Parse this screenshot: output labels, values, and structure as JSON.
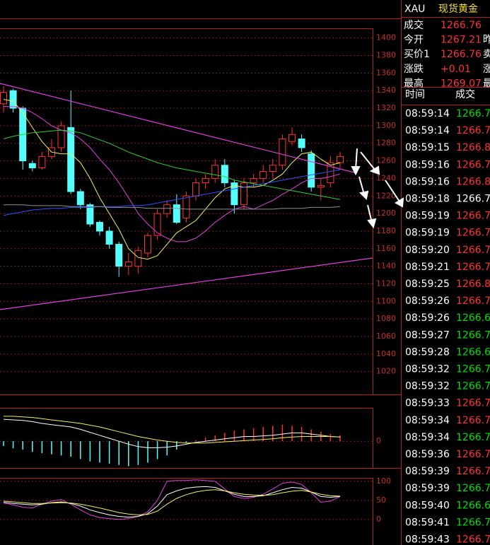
{
  "chart_data": [
    {
      "type": "candlestick",
      "up_color": "#ff3232",
      "down_color": "#54ffff",
      "open": [
        1325,
        1340,
        1320,
        1257,
        1252,
        1265,
        1275,
        1298,
        1225,
        1210,
        1190,
        1180,
        1165,
        1140,
        1140,
        1155,
        1175,
        1200,
        1210,
        1195,
        1220,
        1235,
        1240,
        1255,
        1235,
        1210,
        1235,
        1240,
        1248,
        1255,
        1282,
        1285,
        1268,
        1230,
        1235,
        1258
      ],
      "high": [
        1345,
        1342,
        1322,
        1260,
        1270,
        1285,
        1305,
        1340,
        1228,
        1212,
        1192,
        1185,
        1168,
        1155,
        1162,
        1178,
        1205,
        1215,
        1222,
        1225,
        1240,
        1245,
        1262,
        1262,
        1238,
        1240,
        1245,
        1255,
        1262,
        1290,
        1298,
        1290,
        1272,
        1240,
        1265,
        1270
      ],
      "low": [
        1315,
        1315,
        1250,
        1248,
        1250,
        1262,
        1270,
        1222,
        1205,
        1185,
        1175,
        1160,
        1128,
        1130,
        1132,
        1150,
        1170,
        1195,
        1188,
        1190,
        1215,
        1228,
        1235,
        1230,
        1200,
        1205,
        1230,
        1235,
        1240,
        1250,
        1278,
        1270,
        1225,
        1215,
        1230,
        1252
      ],
      "close": [
        1338,
        1320,
        1260,
        1252,
        1265,
        1275,
        1300,
        1225,
        1210,
        1188,
        1180,
        1165,
        1140,
        1145,
        1158,
        1175,
        1200,
        1210,
        1190,
        1220,
        1235,
        1240,
        1255,
        1235,
        1210,
        1235,
        1240,
        1248,
        1255,
        1285,
        1290,
        1275,
        1230,
        1232,
        1258,
        1265
      ],
      "series": [
        {
          "color": "#f0f060",
          "values": [
            1330,
            1328,
            1315,
            1298,
            1282,
            1270,
            1268,
            1268,
            1258,
            1240,
            1218,
            1200,
            1182,
            1160,
            1150,
            1148,
            1152,
            1165,
            1178,
            1185,
            1192,
            1205,
            1218,
            1228,
            1232,
            1230,
            1230,
            1232,
            1238,
            1245,
            1258,
            1268,
            1270,
            1262,
            1255,
            1258
          ]
        },
        {
          "color": "#e040e0",
          "values": [
            1322,
            1322,
            1320,
            1315,
            1308,
            1300,
            1295,
            1292,
            1285,
            1275,
            1262,
            1250,
            1235,
            1218,
            1200,
            1188,
            1178,
            1172,
            1168,
            1168,
            1172,
            1180,
            1190,
            1198,
            1205,
            1208,
            1205,
            1210,
            1215,
            1222,
            1228,
            1235,
            1240,
            1240,
            1242,
            1245
          ]
        },
        {
          "color": "#30d030",
          "values": [
            1285,
            1288,
            1290,
            1292,
            1293,
            1294,
            1295,
            1294,
            1292,
            1288,
            1284,
            1280,
            1275,
            1270,
            1266,
            1262,
            1258,
            1255,
            1252,
            1250,
            1248,
            1246,
            1244,
            1242,
            1238,
            1236,
            1234,
            1232,
            1230,
            1228,
            1226,
            1224,
            1222,
            1220,
            1218,
            1216
          ]
        },
        {
          "color": "#3050ff",
          "values": [
            1198,
            1200,
            1202,
            1204,
            1205,
            1206,
            1206,
            1207,
            1207,
            1207,
            1208,
            1208,
            1208,
            1209,
            1209,
            1210,
            1212,
            1214,
            1216,
            1218,
            1220,
            1222,
            1224,
            1226,
            1228,
            1230,
            1232,
            1234,
            1236,
            1238,
            1240,
            1242,
            1244,
            1246,
            1248,
            1250
          ]
        },
        {
          "color": "#909090",
          "values": [
            1210,
            1210,
            1210,
            1209,
            1209,
            1209,
            1209,
            1208,
            1208,
            1208,
            1208,
            1207,
            1207,
            1207,
            1207,
            1206,
            1206,
            1206,
            1206,
            1205,
            1205,
            1205,
            1205,
            1205,
            1205,
            1205,
            1205,
            1205,
            1205,
            1206,
            1206,
            1206,
            1207,
            1207,
            1207,
            1208
          ]
        }
      ],
      "ylim": [
        994,
        1411
      ],
      "yticks": [
        1020,
        1040,
        1060,
        1080,
        1100,
        1120,
        1140,
        1160,
        1180,
        1200,
        1220,
        1240,
        1260,
        1280,
        1300,
        1320,
        1340,
        1360,
        1380,
        1400
      ],
      "grid": true
    },
    {
      "type": "macd",
      "up_color": "#ff3232",
      "down_color": "#54ffff",
      "values": [
        -8,
        -12,
        -14,
        -18,
        -20,
        -22,
        -24,
        -26,
        -30,
        -34,
        -36,
        -38,
        -40,
        -42,
        -40,
        -36,
        -30,
        -24,
        -14,
        -2,
        2,
        6,
        10,
        14,
        18,
        20,
        22,
        24,
        26,
        28,
        26,
        24,
        20,
        16,
        12,
        10
      ],
      "series": [
        {
          "color": "#ffffff",
          "values": [
            37,
            36,
            35,
            33,
            30,
            28,
            26,
            24,
            20,
            15,
            10,
            5,
            0,
            -5,
            -9,
            -11,
            -11,
            -10,
            -8,
            -5,
            -2,
            0,
            2,
            4,
            6,
            8,
            8,
            9,
            10,
            12,
            14,
            14,
            12,
            10,
            8,
            7
          ]
        },
        {
          "color": "#f0f060",
          "values": [
            42,
            42,
            41,
            40,
            38,
            36,
            34,
            32,
            30,
            27,
            24,
            20,
            16,
            12,
            8,
            5,
            2,
            0,
            -2,
            -3,
            -3,
            -3,
            -2,
            -1,
            0,
            1,
            2,
            3,
            4,
            6,
            7,
            8,
            8,
            8,
            8,
            7
          ]
        }
      ],
      "ylim": [
        -45,
        55
      ],
      "yticks": [
        0
      ],
      "grid": true
    },
    {
      "type": "line",
      "series": [
        {
          "color": "#e040e0",
          "values": [
            43,
            38,
            32,
            30,
            40,
            48,
            52,
            40,
            25,
            12,
            5,
            2,
            0,
            2,
            8,
            20,
            50,
            100,
            102,
            102,
            104,
            102,
            100,
            80,
            60,
            55,
            58,
            66,
            80,
            95,
            98,
            92,
            70,
            45,
            48,
            60
          ]
        },
        {
          "color": "#ffffff",
          "values": [
            45,
            42,
            40,
            38,
            40,
            44,
            46,
            42,
            35,
            25,
            18,
            12,
            8,
            6,
            8,
            15,
            35,
            65,
            75,
            82,
            85,
            86,
            84,
            75,
            66,
            60,
            60,
            62,
            70,
            78,
            84,
            82,
            72,
            60,
            58,
            60
          ]
        },
        {
          "color": "#f0f060",
          "values": [
            48,
            46,
            44,
            42,
            42,
            43,
            44,
            43,
            40,
            35,
            30,
            24,
            18,
            14,
            12,
            13,
            22,
            40,
            55,
            65,
            72,
            76,
            78,
            75,
            70,
            66,
            64,
            63,
            65,
            70,
            74,
            76,
            72,
            66,
            62,
            61
          ]
        }
      ],
      "ylim": [
        -67,
        109
      ],
      "yticks": [
        0,
        50,
        100
      ],
      "grid": true
    }
  ],
  "quote": {
    "symbol": "XAU",
    "name": "现货黄金",
    "fields": [
      {
        "label": "成交",
        "value": 1266.76
      },
      {
        "label": "今开",
        "value": 1267.21,
        "side": "昨"
      },
      {
        "label": "买价1",
        "value": 1266.76,
        "side": "卖"
      },
      {
        "label": "涨跌",
        "value": "+0.01",
        "side": "涨"
      },
      {
        "label": "最高",
        "value": 1269.07,
        "side": "最"
      }
    ],
    "ticks_header": [
      "时间",
      "成交"
    ],
    "ticks": [
      {
        "time": "08:59:14",
        "price": 1266.7,
        "color": "#00e000"
      },
      {
        "time": "08:59:14",
        "price": 1266.7,
        "color": "#ff3232"
      },
      {
        "time": "08:59:15",
        "price": 1266.8,
        "color": "#ff3232"
      },
      {
        "time": "08:59:16",
        "price": 1266.7,
        "color": "#ff3232"
      },
      {
        "time": "08:59:16",
        "price": 1266.8,
        "color": "#ff3232"
      },
      {
        "time": "08:59:18",
        "price": 1266.7,
        "color": "#ffffff"
      },
      {
        "time": "08:59:19",
        "price": 1266.7,
        "color": "#ff3232"
      },
      {
        "time": "08:59:19",
        "price": 1266.7,
        "color": "#ff3232"
      },
      {
        "time": "08:59:20",
        "price": 1266.7,
        "color": "#ff3232"
      },
      {
        "time": "08:59:21",
        "price": 1266.7,
        "color": "#ff3232"
      },
      {
        "time": "08:59:25",
        "price": 1266.8,
        "color": "#ff3232"
      },
      {
        "time": "08:59:26",
        "price": 1266.7,
        "color": "#ff3232"
      },
      {
        "time": "08:59:26",
        "price": 1266.6,
        "color": "#00e000"
      },
      {
        "time": "08:59:27",
        "price": 1266.7,
        "color": "#00e000"
      },
      {
        "time": "08:59:28",
        "price": 1266.6,
        "color": "#00e000"
      },
      {
        "time": "08:59:32",
        "price": 1266.7,
        "color": "#00e000"
      },
      {
        "time": "08:59:32",
        "price": 1266.7,
        "color": "#00e000"
      },
      {
        "time": "08:59:33",
        "price": 1266.7,
        "color": "#ff3232"
      },
      {
        "time": "08:59:34",
        "price": 1266.7,
        "color": "#ff3232"
      },
      {
        "time": "08:59:34",
        "price": 1266.7,
        "color": "#00e000"
      },
      {
        "time": "08:59:36",
        "price": 1266.7,
        "color": "#ff3232"
      },
      {
        "time": "08:59:39",
        "price": 1266.7,
        "color": "#ff3232"
      },
      {
        "time": "08:59:39",
        "price": 1266.7,
        "color": "#00e000"
      },
      {
        "time": "08:59:40",
        "price": 1266.6,
        "color": "#00e000"
      },
      {
        "time": "08:59:41",
        "price": 1266.7,
        "color": "#00e000"
      },
      {
        "time": "08:59:43",
        "price": 1266.7,
        "color": "#ff3232"
      }
    ]
  }
}
